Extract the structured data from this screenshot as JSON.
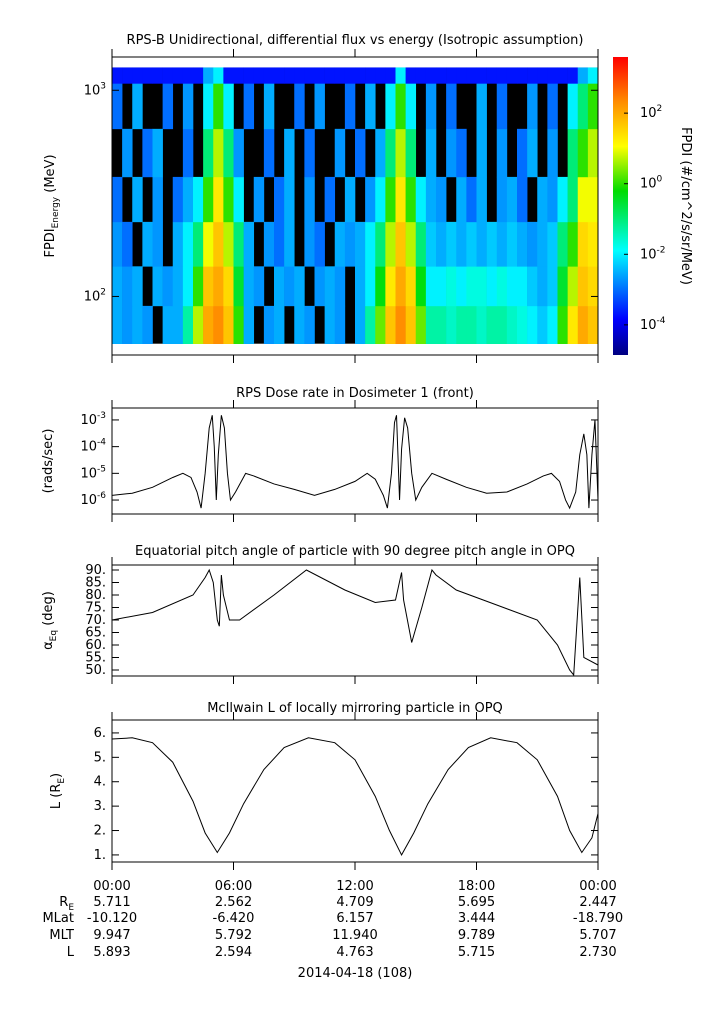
{
  "chart_data": [
    {
      "type": "heatmap",
      "title": "RPS-B  Unidirectional, differential flux vs energy (Isotropic assumption)",
      "ylabel": "FPDI_{Energy} (MeV)",
      "ylog": true,
      "ylim": [
        52,
        1450
      ],
      "yticks": [
        {
          "value": 100,
          "label": "10^{2}"
        },
        {
          "value": 1000,
          "label": "10^{3}"
        }
      ],
      "xlim": [
        0,
        24
      ],
      "time_bins": [
        0,
        0.5,
        1,
        1.5,
        2,
        2.5,
        3,
        3.5,
        4,
        4.5,
        5,
        5.5,
        6,
        6.5,
        7,
        7.5,
        8,
        8.5,
        9,
        9.5,
        10,
        10.5,
        11,
        11.5,
        12,
        12.5,
        13,
        13.5,
        14,
        14.5,
        15,
        15.5,
        16,
        16.5,
        17,
        17.5,
        18,
        18.5,
        19,
        19.5,
        20,
        20.5,
        21,
        21.5,
        22,
        22.5,
        23,
        23.5,
        24
      ],
      "energy_bins": [
        59,
        90,
        140,
        230,
        380,
        650,
        1080,
        1290
      ],
      "z": [
        [
          0.003,
          0.002,
          0.003,
          0.002,
          null,
          0.003,
          0.003,
          0.05,
          5,
          100,
          200,
          50,
          1,
          0.003,
          null,
          0.002,
          0.003,
          null,
          0.003,
          0.002,
          null,
          0.003,
          0.002,
          null,
          0.003,
          0.05,
          2,
          50,
          200,
          50,
          2,
          0.05,
          0.05,
          0.03,
          0.05,
          0.05,
          0.03,
          0.05,
          0.05,
          0.03,
          0.02,
          0.01,
          0.005,
          0.01,
          1,
          20,
          100,
          50
        ],
        [
          0.003,
          0.002,
          0.003,
          null,
          0.003,
          0.002,
          0.003,
          0.01,
          1,
          50,
          100,
          30,
          0.3,
          0.003,
          0.002,
          null,
          0.003,
          0.002,
          0.003,
          null,
          0.002,
          0.003,
          0.002,
          null,
          0.003,
          0.01,
          0.5,
          20,
          100,
          30,
          0.5,
          0.01,
          0.01,
          0.02,
          0.01,
          0.02,
          0.02,
          0.01,
          0.02,
          0.01,
          0.01,
          0.005,
          0.003,
          0.005,
          0.3,
          5,
          50,
          30
        ],
        [
          0.002,
          0.001,
          null,
          0.003,
          0.002,
          null,
          0.003,
          0.01,
          0.1,
          10,
          50,
          5,
          0.1,
          0.003,
          null,
          0.002,
          0.001,
          0.003,
          null,
          0.002,
          0.001,
          null,
          0.003,
          0.002,
          0.003,
          0.01,
          0.1,
          5,
          50,
          5,
          0.1,
          0.005,
          0.003,
          0.005,
          0.003,
          0.005,
          0.003,
          0.005,
          0.003,
          0.005,
          0.003,
          0.002,
          0.003,
          0.005,
          0.1,
          1,
          30,
          20
        ],
        [
          0.001,
          null,
          0.003,
          null,
          0.002,
          null,
          0.001,
          0.003,
          0.01,
          1,
          20,
          1,
          0.01,
          null,
          0.002,
          null,
          0.001,
          0.003,
          null,
          0.002,
          null,
          0.001,
          null,
          0.003,
          null,
          0.002,
          0.01,
          1,
          20,
          1,
          0.01,
          0.003,
          0.002,
          null,
          0.003,
          0.001,
          0.003,
          null,
          0.002,
          0.003,
          0.001,
          null,
          0.003,
          0.002,
          0.01,
          0.1,
          10,
          10
        ],
        [
          null,
          0.002,
          null,
          0.001,
          0.003,
          null,
          null,
          0.001,
          null,
          0.1,
          5,
          0.1,
          0.002,
          null,
          null,
          0.001,
          null,
          0.003,
          null,
          0.001,
          null,
          null,
          0.002,
          null,
          0.001,
          null,
          0.003,
          0.1,
          5,
          0.1,
          null,
          0.003,
          null,
          0.002,
          0.001,
          null,
          0.003,
          null,
          0.002,
          null,
          0.001,
          0.003,
          null,
          0.002,
          null,
          0.1,
          1,
          5
        ],
        [
          0.001,
          null,
          0.003,
          null,
          null,
          0.001,
          null,
          0.002,
          null,
          0.01,
          1,
          0.01,
          null,
          0.001,
          null,
          0.003,
          null,
          null,
          0.001,
          null,
          0.002,
          null,
          null,
          0.001,
          null,
          0.003,
          null,
          0.01,
          1,
          0.01,
          null,
          0.002,
          null,
          0.001,
          null,
          null,
          0.003,
          null,
          0.001,
          null,
          null,
          0.002,
          null,
          0.001,
          null,
          0.01,
          0.1,
          1
        ],
        [
          0.0002,
          0.0002,
          0.0002,
          0.0002,
          0.0002,
          0.0002,
          0.0002,
          0.0002,
          0.0002,
          0.003,
          0.01,
          0.0002,
          0.0002,
          0.0002,
          0.0002,
          0.0002,
          0.0002,
          0.0002,
          0.0002,
          0.0002,
          0.0002,
          0.0002,
          0.0002,
          0.0002,
          0.0002,
          0.0002,
          0.0002,
          0.0002,
          0.01,
          0.0002,
          0.0002,
          0.0002,
          0.0002,
          0.0002,
          0.0002,
          0.0002,
          0.0002,
          0.0002,
          0.0002,
          0.0002,
          0.0002,
          0.0002,
          0.0002,
          0.0002,
          0.0002,
          0.0002,
          0.003,
          0.01
        ]
      ],
      "zlabel": "FPDI (#/cm^2/s/sr/MeV)",
      "zlog": true,
      "zlim": [
        1.4e-05,
        3900
      ],
      "zticks": [
        {
          "value": 0.0001,
          "label": "10^{-4}"
        },
        {
          "value": 0.01,
          "label": "10^{-2}"
        },
        {
          "value": 1,
          "label": "10^{0}"
        },
        {
          "value": 100,
          "label": "10^{2}"
        }
      ]
    },
    {
      "type": "line",
      "title": "RPS  Dose rate in Dosimeter 1 (front)",
      "ylabel": "(rads/sec)",
      "ylog": true,
      "ylim": [
        3e-07,
        0.0028
      ],
      "xlim": [
        0,
        24
      ],
      "color": "#000000",
      "yticks": [
        {
          "value": 1e-06,
          "label": "10^{-6}"
        },
        {
          "value": 1e-05,
          "label": "10^{-5}"
        },
        {
          "value": 0.0001,
          "label": "10^{-4}"
        },
        {
          "value": 0.001,
          "label": "10^{-3}"
        }
      ],
      "x": [
        0,
        1,
        2,
        3,
        3.5,
        3.9,
        4.2,
        4.4,
        4.6,
        4.8,
        4.95,
        5.05,
        5.15,
        5.25,
        5.4,
        5.55,
        5.7,
        5.85,
        6.1,
        6.6,
        7,
        8,
        9,
        10,
        11,
        12,
        12.6,
        13,
        13.4,
        13.6,
        13.8,
        13.95,
        14.05,
        14.2,
        14.3,
        14.45,
        14.6,
        14.8,
        15,
        15.3,
        15.8,
        16.5,
        17.5,
        18.5,
        19.5,
        20.5,
        21.3,
        21.7,
        22.1,
        22.4,
        22.6,
        22.9,
        23.1,
        23.3,
        23.45,
        23.55,
        23.7,
        23.85,
        24
      ],
      "values": [
        1.5e-06,
        1.8e-06,
        3e-06,
        7e-06,
        1e-05,
        7e-06,
        2e-06,
        5e-07,
        1e-05,
        0.0005,
        0.0015,
        0.0001,
        1e-06,
        5e-05,
        0.0015,
        0.0005,
        1e-05,
        1e-06,
        2e-06,
        1e-05,
        8e-06,
        4e-06,
        2.5e-06,
        1.5e-06,
        2.5e-06,
        5e-06,
        1e-05,
        6e-06,
        1.5e-06,
        5e-07,
        1e-05,
        0.0008,
        0.0015,
        1e-06,
        8e-05,
        0.0012,
        0.0005,
        1e-05,
        1e-06,
        3e-06,
        1e-05,
        6e-06,
        3e-06,
        1.8e-06,
        2e-06,
        4e-06,
        8e-06,
        1e-05,
        5e-06,
        1e-06,
        5e-07,
        2e-06,
        5e-05,
        0.0003,
        5e-05,
        5e-07,
        5e-05,
        0.001,
        1e-06
      ]
    },
    {
      "type": "line",
      "title": "Equatorial pitch angle of particle with 90 degree pitch angle in OPQ",
      "ylabel": "α_{Eq} (deg)",
      "ylim": [
        47.6,
        92
      ],
      "xlim": [
        0,
        24
      ],
      "color": "#000000",
      "yticks": [
        {
          "value": 50,
          "label": "50."
        },
        {
          "value": 55,
          "label": "55."
        },
        {
          "value": 60,
          "label": "60."
        },
        {
          "value": 65,
          "label": "65."
        },
        {
          "value": 70,
          "label": "70."
        },
        {
          "value": 75,
          "label": "75."
        },
        {
          "value": 80,
          "label": "80."
        },
        {
          "value": 85,
          "label": "85."
        },
        {
          "value": 90,
          "label": "90."
        }
      ],
      "x": [
        0,
        2,
        4,
        4.6,
        4.8,
        5.0,
        5.2,
        5.3,
        5.4,
        5.5,
        5.8,
        6.3,
        8,
        9.6,
        11.5,
        13,
        14,
        14.3,
        14.4,
        14.8,
        15.3,
        15.8,
        16,
        17,
        19,
        21,
        22,
        22.6,
        22.8,
        23.1,
        23.3,
        24
      ],
      "values": [
        70,
        73,
        80,
        87,
        90,
        85,
        70,
        67.5,
        88,
        80,
        70,
        70,
        80,
        90,
        82,
        77,
        78,
        89,
        78,
        61,
        75,
        90,
        88,
        82,
        76,
        70,
        60,
        50,
        48,
        87,
        55,
        52
      ]
    },
    {
      "type": "line",
      "title": "McIlwain L of locally mirroring particle in OPQ",
      "ylabel": "L (R_{E})",
      "ylim": [
        0.71,
        6.53
      ],
      "xlim": [
        0,
        24
      ],
      "color": "#000000",
      "yticks": [
        {
          "value": 1,
          "label": "1."
        },
        {
          "value": 2,
          "label": "2."
        },
        {
          "value": 3,
          "label": "3."
        },
        {
          "value": 4,
          "label": "4."
        },
        {
          "value": 5,
          "label": "5."
        },
        {
          "value": 6,
          "label": "6."
        }
      ],
      "xticks": [
        {
          "value": 0,
          "label": "00:00"
        },
        {
          "value": 6,
          "label": "06:00"
        },
        {
          "value": 12,
          "label": "12:00"
        },
        {
          "value": 18,
          "label": "18:00"
        },
        {
          "value": 24,
          "label": "00:00"
        }
      ],
      "x": [
        0,
        1,
        2,
        3,
        4,
        4.6,
        5.2,
        5.8,
        6.5,
        7.5,
        8.5,
        9.7,
        11,
        12,
        13,
        13.7,
        14.3,
        14.9,
        15.6,
        16.6,
        17.6,
        18.7,
        20,
        21,
        22,
        22.6,
        23.2,
        23.7,
        24
      ],
      "values": [
        5.75,
        5.8,
        5.6,
        4.8,
        3.2,
        1.9,
        1.1,
        1.9,
        3.1,
        4.5,
        5.4,
        5.8,
        5.6,
        4.9,
        3.4,
        2.0,
        1.0,
        1.9,
        3.1,
        4.5,
        5.4,
        5.8,
        5.6,
        4.9,
        3.4,
        2.0,
        1.1,
        1.7,
        2.7
      ]
    }
  ],
  "ephemeris": {
    "rows": [
      {
        "label": "R_{E}",
        "values": [
          "5.711",
          "2.562",
          "4.709",
          "5.695",
          "2.447"
        ]
      },
      {
        "label": "MLat",
        "values": [
          "-10.120",
          "-6.420",
          "6.157",
          "3.444",
          "-18.790"
        ]
      },
      {
        "label": "MLT",
        "values": [
          "9.947",
          "5.792",
          "11.940",
          "9.789",
          "5.707"
        ]
      },
      {
        "label": "L",
        "values": [
          "5.893",
          "2.594",
          "4.763",
          "5.715",
          "2.730"
        ]
      }
    ],
    "date": "2014-04-18 (108)"
  }
}
